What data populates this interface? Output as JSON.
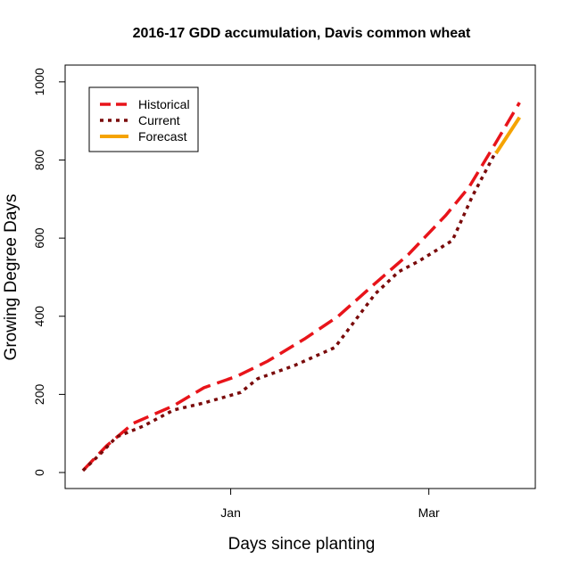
{
  "chart_data": {
    "type": "line",
    "title": "2016-17 GDD accumulation, Davis common wheat",
    "x_label": "Days since planting",
    "y_label": "Growing Degree Days",
    "xlim": [
      -5.3,
      134.7
    ],
    "ylim": [
      -41,
      1043
    ],
    "xticks": [
      {
        "value": 44,
        "label": "Jan"
      },
      {
        "value": 103,
        "label": "Mar"
      }
    ],
    "yticks": [
      0,
      200,
      400,
      600,
      800,
      1000
    ],
    "legend": "top-left",
    "series": [
      {
        "name": "Historical",
        "color": "#e8141a",
        "style": "dashed",
        "x": [
          0,
          7,
          15,
          27,
          36,
          46,
          55,
          66,
          76,
          87,
          97,
          108,
          115,
          123,
          130
        ],
        "values": [
          5,
          68,
          126,
          171,
          217,
          247,
          285,
          342,
          400,
          484,
          559,
          658,
          731,
          845,
          947
        ]
      },
      {
        "name": "Current",
        "color": "#7a0a0a",
        "style": "dotted",
        "x": [
          0,
          5,
          10,
          18,
          27,
          36,
          47,
          52,
          63,
          75,
          82,
          87,
          94,
          100,
          110,
          116,
          123
        ],
        "values": [
          5,
          46,
          91,
          119,
          160,
          178,
          205,
          240,
          274,
          320,
          400,
          457,
          514,
          541,
          594,
          708,
          822
        ]
      },
      {
        "name": "Forecast",
        "color": "#f5a300",
        "style": "solid",
        "x": [
          123,
          130
        ],
        "values": [
          817,
          909
        ]
      }
    ]
  }
}
